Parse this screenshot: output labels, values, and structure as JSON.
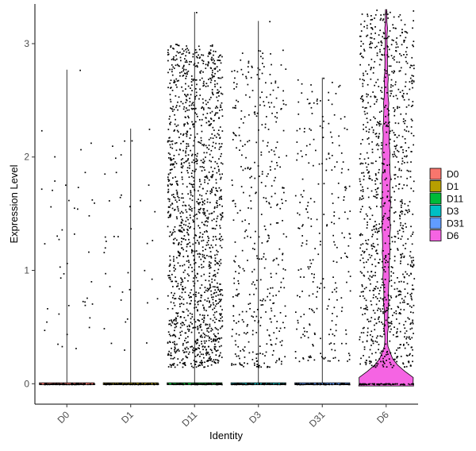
{
  "chart_data": {
    "type": "violin",
    "xlabel": "Identity",
    "ylabel": "Expression Level",
    "ylim": [
      -0.18,
      3.35
    ],
    "yticks": [
      0,
      1,
      2,
      3
    ],
    "categories": [
      "D0",
      "D1",
      "D11",
      "D3",
      "D31",
      "D6"
    ],
    "legend": {
      "position": "right",
      "entries": [
        {
          "label": "D0",
          "color": "#F8766D"
        },
        {
          "label": "D1",
          "color": "#B79F00"
        },
        {
          "label": "D11",
          "color": "#00BA38"
        },
        {
          "label": "D3",
          "color": "#00BFC4"
        },
        {
          "label": "D31",
          "color": "#619CFF"
        },
        {
          "label": "D6",
          "color": "#F564E3"
        }
      ]
    },
    "groups": [
      {
        "name": "D0",
        "max": 2.77,
        "nonzero_points": 45,
        "nonzero_min": 0.3,
        "dense_max": 2.3
      },
      {
        "name": "D1",
        "max": 2.25,
        "nonzero_points": 40,
        "nonzero_min": 0.3,
        "dense_max": 2.25
      },
      {
        "name": "D11",
        "max": 3.28,
        "nonzero_points": 1500,
        "nonzero_min": 0.15,
        "dense_max": 3.0
      },
      {
        "name": "D3",
        "max": 3.2,
        "nonzero_points": 420,
        "nonzero_min": 0.15,
        "dense_max": 2.95
      },
      {
        "name": "D31",
        "max": 2.7,
        "nonzero_points": 260,
        "nonzero_min": 0.2,
        "dense_max": 2.7
      },
      {
        "name": "D6",
        "max": 3.3,
        "nonzero_points": 1050,
        "nonzero_min": 0.15,
        "dense_max": 3.3
      }
    ]
  }
}
